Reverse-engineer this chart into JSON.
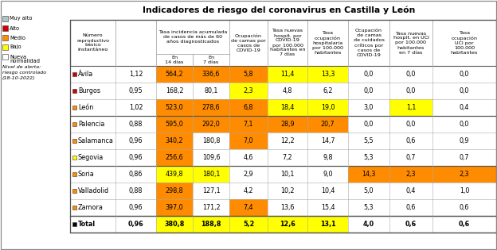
{
  "title": "Indicadores de riesgo del coronavirus en Castilla y León",
  "rows": [
    {
      "province": "Ávila",
      "color_sq": "#cc0000",
      "bold": false,
      "vals": [
        "1,12",
        "564,2",
        "336,6",
        "5,8",
        "11,4",
        "13,3",
        "0,0",
        "0,0",
        "0,0"
      ],
      "cell_colors": [
        "",
        "#ff8c00",
        "#ff8c00",
        "#ff8c00",
        "#ffff00",
        "#ffff00",
        "",
        "",
        ""
      ]
    },
    {
      "province": "Burgos",
      "color_sq": "#cc0000",
      "bold": false,
      "vals": [
        "0,95",
        "168,2",
        "80,1",
        "2,3",
        "4,8",
        "6,2",
        "0,0",
        "0,0",
        "0,0"
      ],
      "cell_colors": [
        "",
        "",
        "",
        "#ffff00",
        "",
        "",
        "",
        "",
        ""
      ]
    },
    {
      "province": "León",
      "color_sq": "#ff8c00",
      "bold": false,
      "vals": [
        "1,02",
        "523,0",
        "278,6",
        "6,8",
        "18,4",
        "19,0",
        "3,0",
        "1,1",
        "0,4"
      ],
      "cell_colors": [
        "",
        "#ff8c00",
        "#ff8c00",
        "#ff8c00",
        "#ffff00",
        "#ffff00",
        "",
        "#ffff00",
        ""
      ]
    },
    {
      "province": "Palencia",
      "color_sq": "#ff8c00",
      "bold": false,
      "vals": [
        "0,88",
        "595,0",
        "292,0",
        "7,1",
        "28,9",
        "20,7",
        "0,0",
        "0,0",
        "0,0"
      ],
      "cell_colors": [
        "",
        "#ff8c00",
        "#ff8c00",
        "#ff8c00",
        "#ff8c00",
        "#ff8c00",
        "",
        "",
        ""
      ]
    },
    {
      "province": "Salamanca",
      "color_sq": "#ff8c00",
      "bold": false,
      "vals": [
        "0,96",
        "340,2",
        "180,8",
        "7,0",
        "12,2",
        "14,7",
        "5,5",
        "0,6",
        "0,9"
      ],
      "cell_colors": [
        "",
        "#ff8c00",
        "",
        "#ff8c00",
        "",
        "",
        "",
        "",
        ""
      ]
    },
    {
      "province": "Segovia",
      "color_sq": "#ffff00",
      "bold": false,
      "vals": [
        "0,96",
        "256,6",
        "109,6",
        "4,6",
        "7,2",
        "9,8",
        "5,3",
        "0,7",
        "0,7"
      ],
      "cell_colors": [
        "",
        "#ff8c00",
        "",
        "",
        "",
        "",
        "",
        "",
        ""
      ]
    },
    {
      "province": "Soria",
      "color_sq": "#ff8c00",
      "bold": false,
      "vals": [
        "0,86",
        "439,8",
        "180,1",
        "2,9",
        "10,1",
        "9,0",
        "14,3",
        "2,3",
        "2,3"
      ],
      "cell_colors": [
        "",
        "#ffff00",
        "#ffff00",
        "",
        "",
        "",
        "#ff8c00",
        "#ff8c00",
        "#ff8c00"
      ]
    },
    {
      "province": "Valladolid",
      "color_sq": "#ff8c00",
      "bold": false,
      "vals": [
        "0,88",
        "298,8",
        "127,1",
        "4,2",
        "10,2",
        "10,4",
        "5,0",
        "0,4",
        "1,0"
      ],
      "cell_colors": [
        "",
        "#ff8c00",
        "",
        "",
        "",
        "",
        "",
        "",
        ""
      ]
    },
    {
      "province": "Zamora",
      "color_sq": "#ff8c00",
      "bold": false,
      "vals": [
        "0,96",
        "397,0",
        "171,2",
        "7,4",
        "13,6",
        "15,4",
        "5,3",
        "0,6",
        "0,6"
      ],
      "cell_colors": [
        "",
        "#ff8c00",
        "",
        "#ff8c00",
        "",
        "",
        "",
        "",
        ""
      ]
    },
    {
      "province": "Total",
      "color_sq": "#000000",
      "bold": true,
      "vals": [
        "0,96",
        "380,8",
        "188,8",
        "5,2",
        "12,6",
        "13,1",
        "4,0",
        "0,6",
        "0,6"
      ],
      "cell_colors": [
        "",
        "#ffff00",
        "#ffff00",
        "#ffff00",
        "#ffff00",
        "#ffff00",
        "",
        "",
        ""
      ]
    }
  ],
  "divider_rows": [
    2,
    5,
    8
  ],
  "legend_colors": [
    "#b0c4c4",
    "#cc0000",
    "#ff8c00",
    "#ffff00",
    "#ffffff"
  ],
  "legend_labels": [
    "Muy alto",
    "Alto",
    "Medio",
    "Bajo",
    "Nueva\nnormalidad"
  ]
}
